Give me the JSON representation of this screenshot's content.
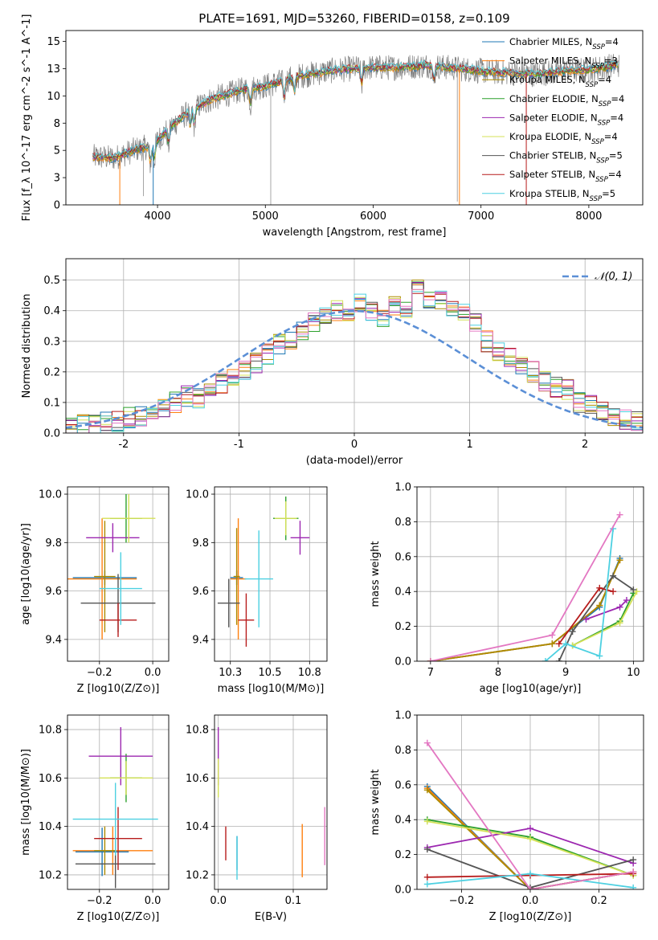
{
  "figure_title": "PLATE=1691, MJD=53260, FIBERID=0158, z=0.109",
  "models": [
    {
      "name": "Chabrier MILES",
      "nssp": "4",
      "color": "#1f77b4"
    },
    {
      "name": "Salpeter MILES",
      "nssp": "3",
      "color": "#ff7f0e"
    },
    {
      "name": "Kroupa MILES",
      "nssp": "4",
      "color": "#ad8b00"
    },
    {
      "name": "Chabrier ELODIE",
      "nssp": "4",
      "color": "#2ca02c"
    },
    {
      "name": "Salpeter ELODIE",
      "nssp": "4",
      "color": "#9c27b0"
    },
    {
      "name": "Kroupa ELODIE",
      "nssp": "4",
      "color": "#d4e157"
    },
    {
      "name": "Chabrier STELIB",
      "nssp": "5",
      "color": "#555555"
    },
    {
      "name": "Salpeter STELIB",
      "nssp": "4",
      "color": "#b71c1c"
    },
    {
      "name": "Kroupa STELIB",
      "nssp": "5",
      "color": "#4dd0e1"
    }
  ],
  "chart_data": [
    {
      "id": "spectrum",
      "type": "line",
      "xlabel": "wavelength [Angstrom, rest frame]",
      "ylabel": "Flux [f_λ 10^-17 erg cm^-2 s^-1 A^-1]",
      "xlim": [
        3150,
        8500
      ],
      "ylim": [
        0,
        16
      ],
      "xticks": [
        4000,
        5000,
        6000,
        7000,
        8000
      ],
      "yticks": [
        0.0,
        2.5,
        5.0,
        7.5,
        10.0,
        12.5,
        15.0
      ],
      "grid": false,
      "legend": "top-right",
      "continuum": [
        {
          "x": 3400,
          "y": 4.4
        },
        {
          "x": 3600,
          "y": 4.3
        },
        {
          "x": 3800,
          "y": 5.1
        },
        {
          "x": 3950,
          "y": 5.4
        },
        {
          "x": 4100,
          "y": 7.0
        },
        {
          "x": 4300,
          "y": 8.6
        },
        {
          "x": 4500,
          "y": 9.7
        },
        {
          "x": 4800,
          "y": 10.6
        },
        {
          "x": 5000,
          "y": 10.9
        },
        {
          "x": 5300,
          "y": 11.8
        },
        {
          "x": 5600,
          "y": 12.3
        },
        {
          "x": 5900,
          "y": 12.6
        },
        {
          "x": 6200,
          "y": 12.6
        },
        {
          "x": 6500,
          "y": 12.8
        },
        {
          "x": 6800,
          "y": 12.5
        },
        {
          "x": 7100,
          "y": 12.2
        },
        {
          "x": 7500,
          "y": 12.0
        },
        {
          "x": 7800,
          "y": 12.3
        },
        {
          "x": 8000,
          "y": 12.4
        },
        {
          "x": 8300,
          "y": 12.9
        }
      ],
      "absorption_lines": [
        3934,
        3969,
        4102,
        4304,
        4341,
        4861,
        5175,
        5270,
        5893,
        6563
      ]
    },
    {
      "id": "residuals",
      "type": "bar",
      "xlabel": "(data-model)/error",
      "ylabel": "Normed distribution",
      "xlim": [
        -2.5,
        2.5
      ],
      "ylim": [
        0,
        0.57
      ],
      "xticks": [
        -2,
        -1,
        0,
        1,
        2
      ],
      "yticks": [
        0.0,
        0.1,
        0.2,
        0.3,
        0.4,
        0.5
      ],
      "grid": true,
      "bin_edges_start": -2.5,
      "bin_width": 0.1,
      "reference_curve": {
        "name": "𝒩(0, 1)",
        "mean": 0,
        "sigma": 1,
        "color": "#5b8fd6",
        "style": "dashed"
      },
      "legend": "top-right",
      "values": [
        0.02,
        0.025,
        0.03,
        0.04,
        0.04,
        0.05,
        0.055,
        0.065,
        0.085,
        0.1,
        0.12,
        0.11,
        0.14,
        0.16,
        0.19,
        0.2,
        0.23,
        0.26,
        0.29,
        0.31,
        0.33,
        0.36,
        0.38,
        0.4,
        0.38,
        0.42,
        0.4,
        0.37,
        0.42,
        0.41,
        0.48,
        0.44,
        0.43,
        0.41,
        0.39,
        0.36,
        0.3,
        0.27,
        0.25,
        0.22,
        0.2,
        0.17,
        0.15,
        0.14,
        0.1,
        0.09,
        0.07,
        0.05,
        0.045,
        0.04
      ]
    },
    {
      "id": "age_vs_Z",
      "type": "scatter",
      "xlabel": "Z [log10(Z/Z⊙)]",
      "ylabel": "age  [log10(age/yr)]",
      "xlim": [
        -0.32,
        0.06
      ],
      "ylim": [
        9.31,
        10.03
      ],
      "xticks": [
        -0.2,
        0.0
      ],
      "yticks": [
        9.4,
        9.6,
        9.8,
        10.0
      ],
      "grid": true,
      "points": [
        {
          "model": 0,
          "x": -0.18,
          "y": 9.655,
          "xerr": 0.12,
          "yerr": 0.03
        },
        {
          "model": 1,
          "x": -0.19,
          "y": 9.65,
          "xerr": 0.13,
          "yerr": 0.25
        },
        {
          "model": 2,
          "x": -0.18,
          "y": 9.66,
          "xerr": 0.04,
          "yerr": 0.23
        },
        {
          "model": 3,
          "x": -0.1,
          "y": 9.9,
          "xerr": 0.06,
          "yerr": 0.1
        },
        {
          "model": 4,
          "x": -0.15,
          "y": 9.82,
          "xerr": 0.1,
          "yerr": 0.06
        },
        {
          "model": 5,
          "x": -0.09,
          "y": 9.9,
          "xerr": 0.1,
          "yerr": 0.1
        },
        {
          "model": 6,
          "x": -0.13,
          "y": 9.55,
          "xerr": 0.14,
          "yerr": 0.12
        },
        {
          "model": 7,
          "x": -0.13,
          "y": 9.48,
          "xerr": 0.07,
          "yerr": 0.07
        },
        {
          "model": 8,
          "x": -0.12,
          "y": 9.61,
          "xerr": 0.08,
          "yerr": 0.15
        }
      ]
    },
    {
      "id": "age_vs_mass",
      "type": "scatter",
      "xlabel": "mass [log10(M/M⊙)]",
      "ylabel": "",
      "xlim": [
        10.15,
        10.86
      ],
      "ylim": [
        9.31,
        10.03
      ],
      "xticks": [
        10.25,
        10.5,
        10.75
      ],
      "yticks": [
        9.4,
        9.6,
        9.8,
        10.0
      ],
      "grid": true,
      "points": [
        {
          "model": 0,
          "x": 10.29,
          "y": 9.655,
          "xerr": 0.04,
          "yerr": 0.03
        },
        {
          "model": 1,
          "x": 10.3,
          "y": 9.65,
          "xerr": 0.05,
          "yerr": 0.25
        },
        {
          "model": 2,
          "x": 10.29,
          "y": 9.66,
          "xerr": 0.02,
          "yerr": 0.2
        },
        {
          "model": 3,
          "x": 10.6,
          "y": 9.9,
          "xerr": 0.08,
          "yerr": 0.09
        },
        {
          "model": 4,
          "x": 10.69,
          "y": 9.82,
          "xerr": 0.06,
          "yerr": 0.07
        },
        {
          "model": 5,
          "x": 10.6,
          "y": 9.9,
          "xerr": 0.07,
          "yerr": 0.07
        },
        {
          "model": 6,
          "x": 10.24,
          "y": 9.55,
          "xerr": 0.07,
          "yerr": 0.1
        },
        {
          "model": 7,
          "x": 10.35,
          "y": 9.48,
          "xerr": 0.05,
          "yerr": 0.11
        },
        {
          "model": 8,
          "x": 10.43,
          "y": 9.65,
          "xerr": 0.09,
          "yerr": 0.2
        }
      ]
    },
    {
      "id": "weight_vs_age",
      "type": "line",
      "xlabel": "age  [log10(age/yr)]",
      "ylabel": "mass weight",
      "xlim": [
        6.8,
        10.15
      ],
      "ylim": [
        0,
        1
      ],
      "xticks": [
        7,
        8,
        9,
        10
      ],
      "yticks": [
        0.0,
        0.2,
        0.4,
        0.6,
        0.8,
        1.0
      ],
      "grid": true,
      "series": [
        {
          "model": 0,
          "x": [
            7.0,
            8.8,
            9.5,
            9.8
          ],
          "y": [
            0.0,
            0.1,
            0.31,
            0.59
          ]
        },
        {
          "model": 1,
          "x": [
            7.0,
            8.8,
            9.5,
            9.8
          ],
          "y": [
            0.0,
            0.1,
            0.32,
            0.58
          ]
        },
        {
          "model": 2,
          "x": [
            7.0,
            8.8,
            9.5,
            9.8
          ],
          "y": [
            0.0,
            0.1,
            0.32,
            0.58
          ]
        },
        {
          "model": 3,
          "x": [
            9.1,
            9.8,
            10.0
          ],
          "y": [
            0.09,
            0.23,
            0.39
          ]
        },
        {
          "model": 4,
          "x": [
            9.3,
            9.8,
            9.9
          ],
          "y": [
            0.24,
            0.31,
            0.35
          ]
        },
        {
          "model": 5,
          "x": [
            9.1,
            9.8,
            10.05
          ],
          "y": [
            0.09,
            0.22,
            0.4
          ]
        },
        {
          "model": 6,
          "x": [
            8.9,
            9.1,
            9.7,
            10.0
          ],
          "y": [
            0.0,
            0.17,
            0.49,
            0.41
          ]
        },
        {
          "model": 7,
          "x": [
            8.9,
            9.5,
            9.7
          ],
          "y": [
            0.1,
            0.42,
            0.4
          ]
        },
        {
          "model": 8,
          "x": [
            8.7,
            9.0,
            9.5,
            9.7
          ],
          "y": [
            0.0,
            0.1,
            0.03,
            0.76
          ]
        },
        {
          "model": 2,
          "x": [
            7.0,
            8.8,
            9.8
          ],
          "y": [
            0.0,
            0.15,
            0.84
          ],
          "color": "#e377c2"
        }
      ]
    },
    {
      "id": "mass_vs_Z",
      "type": "scatter",
      "xlabel": "Z [log10(Z/Z⊙)]",
      "ylabel": "mass [log10(M/M⊙)]",
      "xlim": [
        -0.32,
        0.06
      ],
      "ylim": [
        10.14,
        10.86
      ],
      "xticks": [
        -0.2,
        0.0
      ],
      "yticks": [
        10.2,
        10.4,
        10.6,
        10.8
      ],
      "grid": true,
      "points": [
        {
          "model": 0,
          "x": -0.19,
          "y": 10.295,
          "xerr": 0.1,
          "yerr": 0.1
        },
        {
          "model": 1,
          "x": -0.15,
          "y": 10.3,
          "xerr": 0.15,
          "yerr": 0.1
        },
        {
          "model": 2,
          "x": -0.18,
          "y": 10.3,
          "xerr": 0.04,
          "yerr": 0.1
        },
        {
          "model": 3,
          "x": -0.1,
          "y": 10.6,
          "xerr": 0.06,
          "yerr": 0.1
        },
        {
          "model": 4,
          "x": -0.12,
          "y": 10.69,
          "xerr": 0.12,
          "yerr": 0.12
        },
        {
          "model": 5,
          "x": -0.1,
          "y": 10.6,
          "xerr": 0.1,
          "yerr": 0.07
        },
        {
          "model": 6,
          "x": -0.14,
          "y": 10.245,
          "xerr": 0.15,
          "yerr": 0.1
        },
        {
          "model": 7,
          "x": -0.13,
          "y": 10.35,
          "xerr": 0.09,
          "yerr": 0.13
        },
        {
          "model": 8,
          "x": -0.14,
          "y": 10.43,
          "xerr": 0.16,
          "yerr": 0.15
        }
      ]
    },
    {
      "id": "mass_vs_ebv",
      "type": "scatter",
      "xlabel": "E(B-V)",
      "ylabel": "",
      "xlim": [
        -0.005,
        0.145
      ],
      "ylim": [
        10.14,
        10.86
      ],
      "xticks": [
        0.0,
        0.1
      ],
      "yticks": [
        10.2,
        10.4,
        10.6,
        10.8
      ],
      "grid": true,
      "points": [
        {
          "model": 0,
          "x": 0.025,
          "y": 10.29,
          "xerr": 0,
          "yerr": 0.07
        },
        {
          "model": 1,
          "x": 0.112,
          "y": 10.3,
          "xerr": 0,
          "yerr": 0.11
        },
        {
          "model": 4,
          "x": 0.0,
          "y": 10.69,
          "xerr": 0,
          "yerr": 0.12
        },
        {
          "model": 5,
          "x": 0.0,
          "y": 10.6,
          "xerr": 0,
          "yerr": 0.08
        },
        {
          "model": 7,
          "x": 0.01,
          "y": 10.33,
          "xerr": 0,
          "yerr": 0.07
        },
        {
          "model": 8,
          "x": 0.025,
          "y": 10.27,
          "xerr": 0,
          "yerr": 0.09
        },
        {
          "model": 2,
          "x": 0.142,
          "y": 10.36,
          "xerr": 0,
          "yerr": 0.12,
          "color": "#e377c2"
        }
      ]
    },
    {
      "id": "weight_vs_Z",
      "type": "line",
      "xlabel": "Z [log10(Z/Z⊙)]",
      "ylabel": "mass weight",
      "xlim": [
        -0.33,
        0.33
      ],
      "ylim": [
        0,
        1
      ],
      "xticks": [
        -0.2,
        0.0,
        0.2
      ],
      "yticks": [
        0.0,
        0.2,
        0.4,
        0.6,
        0.8,
        1.0
      ],
      "grid": true,
      "series": [
        {
          "model": 0,
          "x": [
            -0.3,
            0.0,
            0.3
          ],
          "y": [
            0.59,
            0.0,
            0.1
          ]
        },
        {
          "model": 1,
          "x": [
            -0.3,
            0.0,
            0.3
          ],
          "y": [
            0.58,
            0.0,
            0.1
          ]
        },
        {
          "model": 2,
          "x": [
            -0.3,
            0.0,
            0.3
          ],
          "y": [
            0.57,
            0.0,
            0.1
          ]
        },
        {
          "model": 3,
          "x": [
            -0.3,
            0.0,
            0.3
          ],
          "y": [
            0.4,
            0.3,
            0.08
          ]
        },
        {
          "model": 4,
          "x": [
            -0.3,
            0.0,
            0.3
          ],
          "y": [
            0.24,
            0.35,
            0.15
          ]
        },
        {
          "model": 5,
          "x": [
            -0.3,
            0.0,
            0.3
          ],
          "y": [
            0.39,
            0.29,
            0.08
          ]
        },
        {
          "model": 6,
          "x": [
            -0.3,
            0.0,
            0.3
          ],
          "y": [
            0.23,
            0.01,
            0.17
          ]
        },
        {
          "model": 7,
          "x": [
            -0.3,
            0.0,
            0.3
          ],
          "y": [
            0.07,
            0.08,
            0.09
          ]
        },
        {
          "model": 8,
          "x": [
            -0.3,
            0.0,
            0.3
          ],
          "y": [
            0.03,
            0.09,
            0.01
          ]
        },
        {
          "model": 2,
          "x": [
            -0.3,
            0.0,
            0.3
          ],
          "y": [
            0.84,
            0.0,
            0.1
          ],
          "color": "#e377c2"
        }
      ]
    }
  ]
}
